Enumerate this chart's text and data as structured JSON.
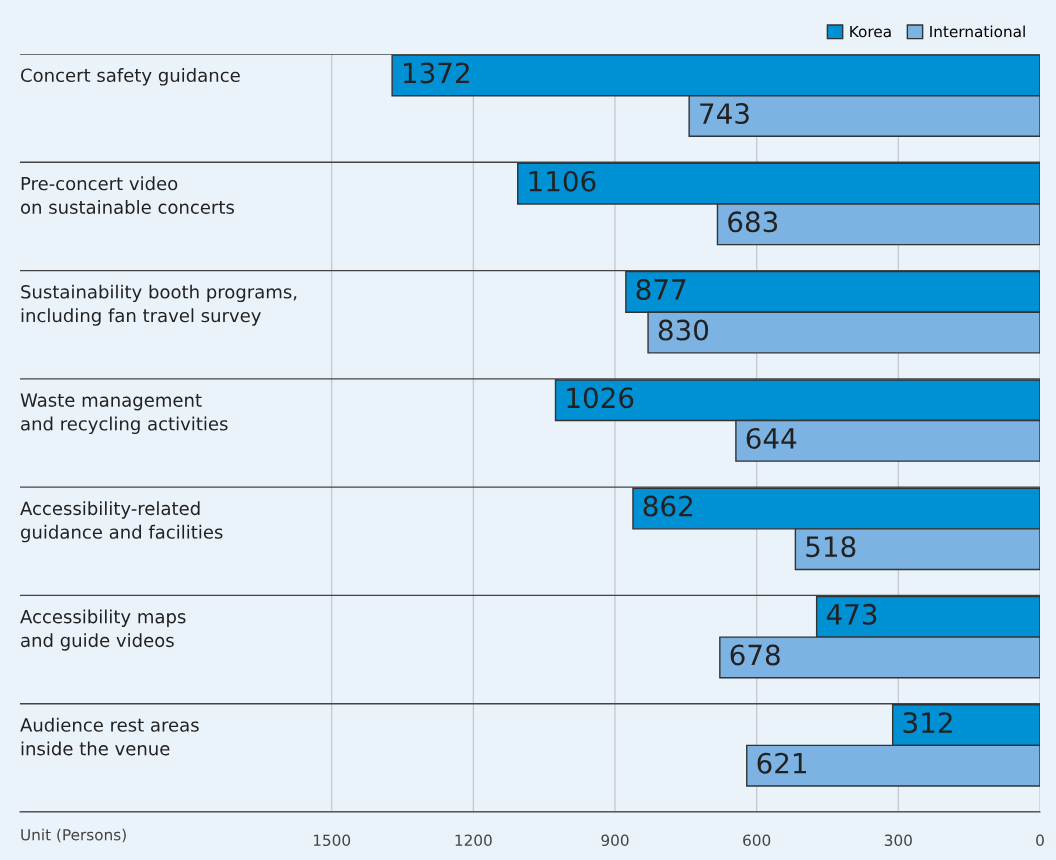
{
  "chart_data": {
    "type": "bar",
    "orientation": "horizontal",
    "xlabel": "Unit (Persons)",
    "categories": [
      "Concert safety guidance",
      "Pre-concert video\non sustainable concerts",
      "Sustainability booth programs,\nincluding fan travel survey",
      "Waste management\nand recycling activities",
      "Accessibility-related\nguidance and facilities",
      "Accessibility maps\nand guide videos",
      "Audience rest areas\ninside the venue"
    ],
    "series": [
      {
        "name": "Korea",
        "color": "#0091d5",
        "values": [
          1372,
          1106,
          877,
          1026,
          862,
          473,
          312
        ]
      },
      {
        "name": "International",
        "color": "#7cb3e2",
        "values": [
          743,
          683,
          830,
          644,
          518,
          678,
          621
        ]
      }
    ],
    "xlim": [
      2160,
      0
    ],
    "xticks": [
      1500,
      1200,
      900,
      600,
      300,
      0
    ],
    "grid": "x",
    "legend": "top right",
    "data_labels": true
  }
}
